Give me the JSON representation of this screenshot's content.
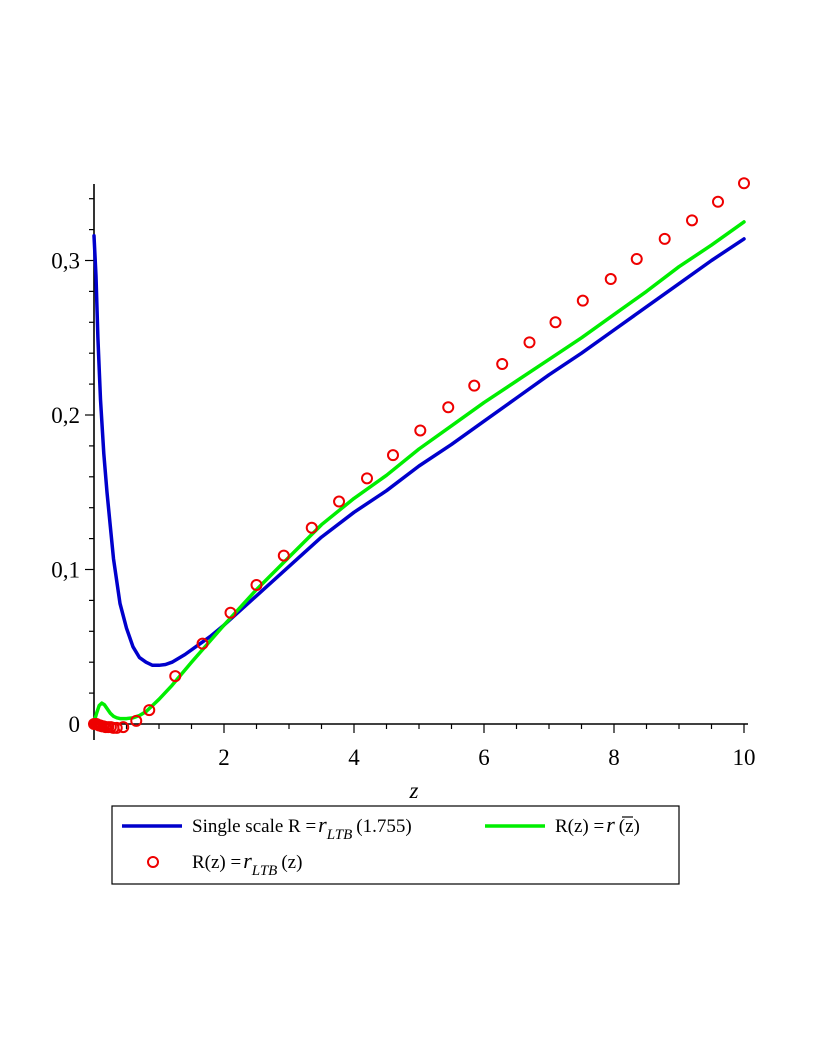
{
  "chart_data": {
    "type": "line",
    "xlabel": "z",
    "ylabel": "",
    "xlim": [
      0,
      10
    ],
    "ylim": [
      0,
      0.35
    ],
    "x_ticks": [
      2,
      4,
      6,
      8,
      10
    ],
    "x_tick_labels": [
      "2",
      "4",
      "6",
      "8",
      "10"
    ],
    "y_ticks": [
      0,
      0.1,
      0.2,
      0.3
    ],
    "y_tick_labels": [
      "0",
      "0,1",
      "0,2",
      "0,3"
    ],
    "grid": false,
    "legend_placement": "bottom",
    "series": [
      {
        "name": "Single scale R = r_LTB(1.755)",
        "style": "line",
        "color": "#0000cc",
        "legend_parts": {
          "prefix": "Single scale R =",
          "sym": "r",
          "sub": "LTB",
          "arg": "(1.755)"
        },
        "x": [
          0.0,
          0.03,
          0.06,
          0.1,
          0.15,
          0.2,
          0.25,
          0.3,
          0.4,
          0.5,
          0.6,
          0.7,
          0.8,
          0.9,
          1.0,
          1.1,
          1.2,
          1.4,
          1.6,
          1.8,
          2.0,
          2.5,
          3.0,
          3.5,
          4.0,
          4.5,
          5.0,
          5.5,
          6.0,
          6.5,
          7.0,
          7.5,
          8.0,
          8.5,
          9.0,
          9.5,
          10.0
        ],
        "y": [
          0.316,
          0.29,
          0.25,
          0.21,
          0.175,
          0.15,
          0.128,
          0.107,
          0.078,
          0.062,
          0.05,
          0.043,
          0.04,
          0.038,
          0.038,
          0.0385,
          0.04,
          0.045,
          0.051,
          0.057,
          0.064,
          0.083,
          0.102,
          0.121,
          0.137,
          0.151,
          0.167,
          0.181,
          0.196,
          0.211,
          0.226,
          0.24,
          0.255,
          0.27,
          0.285,
          0.3,
          0.314
        ]
      },
      {
        "name": "R(z) = r̄(z)",
        "style": "line",
        "color": "#00ee00",
        "legend_parts": {
          "prefix": "R(z) =",
          "sym": "r",
          "bar": true,
          "arg": "(z)"
        },
        "x": [
          0.0,
          0.04,
          0.08,
          0.12,
          0.16,
          0.2,
          0.25,
          0.3,
          0.35,
          0.4,
          0.5,
          0.6,
          0.7,
          0.8,
          0.9,
          1.0,
          1.2,
          1.5,
          2.0,
          2.5,
          3.0,
          3.5,
          4.0,
          4.5,
          5.0,
          5.5,
          6.0,
          6.5,
          7.0,
          7.5,
          8.0,
          8.5,
          9.0,
          9.5,
          10.0
        ],
        "y": [
          0.001,
          0.007,
          0.012,
          0.0135,
          0.0125,
          0.01,
          0.007,
          0.005,
          0.004,
          0.0035,
          0.0035,
          0.004,
          0.0055,
          0.008,
          0.012,
          0.016,
          0.025,
          0.04,
          0.064,
          0.087,
          0.108,
          0.129,
          0.146,
          0.161,
          0.178,
          0.193,
          0.208,
          0.222,
          0.236,
          0.25,
          0.265,
          0.28,
          0.296,
          0.31,
          0.325
        ]
      },
      {
        "name": "R(z) = r_LTB(z)",
        "style": "scatter",
        "color": "#ee0000",
        "legend_parts": {
          "prefix": "R(z) =",
          "sym": "r",
          "sub": "LTB",
          "arg": "(z)"
        },
        "x": [
          0.0,
          0.02,
          0.04,
          0.06,
          0.08,
          0.1,
          0.12,
          0.15,
          0.18,
          0.22,
          0.26,
          0.3,
          0.35,
          0.45,
          0.65,
          0.85,
          1.25,
          1.67,
          2.1,
          2.5,
          2.92,
          3.35,
          3.77,
          4.2,
          4.6,
          5.02,
          5.45,
          5.85,
          6.28,
          6.7,
          7.1,
          7.52,
          7.95,
          8.35,
          8.78,
          9.2,
          9.6,
          10.0
        ],
        "y": [
          0.0,
          0.0,
          0.0,
          -0.0005,
          -0.001,
          -0.001,
          -0.0015,
          -0.0015,
          -0.002,
          -0.002,
          -0.002,
          -0.0025,
          -0.0025,
          -0.002,
          0.002,
          0.009,
          0.031,
          0.052,
          0.072,
          0.09,
          0.109,
          0.127,
          0.144,
          0.159,
          0.174,
          0.19,
          0.205,
          0.219,
          0.233,
          0.247,
          0.26,
          0.274,
          0.288,
          0.301,
          0.314,
          0.326,
          0.338,
          0.35
        ]
      }
    ]
  }
}
